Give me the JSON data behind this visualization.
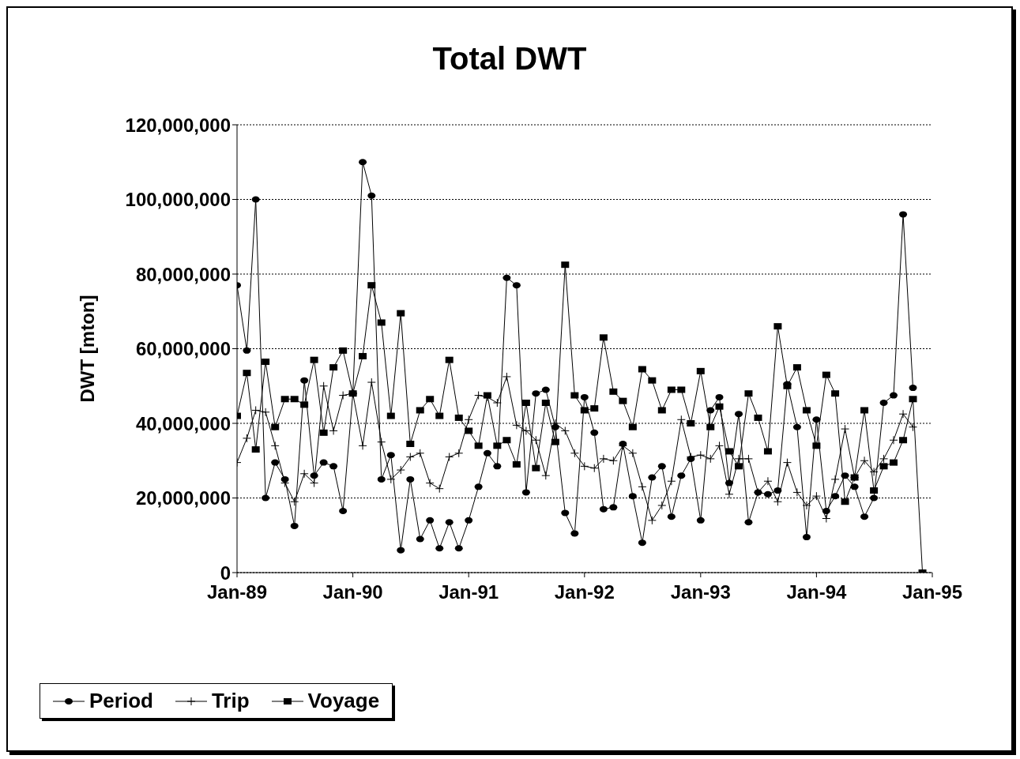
{
  "chart_data": {
    "type": "line",
    "title": "Total DWT",
    "ylabel": "DWT  [mton]",
    "x": [
      "1989-01",
      "1989-02",
      "1989-03",
      "1989-04",
      "1989-05",
      "1989-06",
      "1989-07",
      "1989-08",
      "1989-09",
      "1989-10",
      "1989-11",
      "1989-12",
      "1990-01",
      "1990-02",
      "1990-03",
      "1990-04",
      "1990-05",
      "1990-06",
      "1990-07",
      "1990-08",
      "1990-09",
      "1990-10",
      "1990-11",
      "1990-12",
      "1991-01",
      "1991-02",
      "1991-03",
      "1991-04",
      "1991-05",
      "1991-06",
      "1991-07",
      "1991-08",
      "1991-09",
      "1991-10",
      "1991-11",
      "1991-12",
      "1992-01",
      "1992-02",
      "1992-03",
      "1992-04",
      "1992-05",
      "1992-06",
      "1992-07",
      "1992-08",
      "1992-09",
      "1992-10",
      "1992-11",
      "1992-12",
      "1993-01",
      "1993-02",
      "1993-03",
      "1993-04",
      "1993-05",
      "1993-06",
      "1993-07",
      "1993-08",
      "1993-09",
      "1993-10",
      "1993-11",
      "1993-12",
      "1994-01",
      "1994-02",
      "1994-03",
      "1994-04",
      "1994-05",
      "1994-06",
      "1994-07",
      "1994-08",
      "1994-09",
      "1994-10",
      "1994-11",
      "1994-12"
    ],
    "series": [
      {
        "name": "Period",
        "color": "#000000",
        "marker": "circle",
        "values": [
          77000000,
          59500000,
          100000000,
          20000000,
          29500000,
          25000000,
          12500000,
          51500000,
          26000000,
          29500000,
          28500000,
          16500000,
          48000000,
          110000000,
          101000000,
          25000000,
          31500000,
          6000000,
          25000000,
          9000000,
          14000000,
          6500000,
          13500000,
          6500000,
          14000000,
          23000000,
          32000000,
          28500000,
          79000000,
          77000000,
          21500000,
          48000000,
          49000000,
          39000000,
          16000000,
          10500000,
          47000000,
          37500000,
          17000000,
          17500000,
          34500000,
          20500000,
          8000000,
          25500000,
          28500000,
          15000000,
          26000000,
          30500000,
          14000000,
          43500000,
          47000000,
          24000000,
          42500000,
          13500000,
          21500000,
          21000000,
          22000000,
          50500000,
          39000000,
          9500000,
          41000000,
          16500000,
          20500000,
          26000000,
          23000000,
          15000000,
          20000000,
          45500000,
          47500000,
          96000000,
          49500000,
          null
        ]
      },
      {
        "name": "Trip",
        "color": "#000000",
        "marker": "cross",
        "values": [
          29500000,
          36000000,
          43500000,
          43000000,
          34000000,
          24000000,
          19000000,
          26500000,
          24000000,
          50000000,
          38000000,
          47500000,
          48000000,
          34000000,
          51000000,
          35000000,
          25000000,
          27500000,
          31000000,
          32000000,
          24000000,
          22500000,
          31000000,
          32000000,
          41000000,
          47500000,
          47000000,
          45500000,
          52500000,
          39500000,
          38000000,
          35500000,
          26000000,
          40000000,
          38000000,
          32000000,
          28500000,
          28000000,
          30500000,
          30000000,
          34000000,
          32000000,
          23000000,
          14000000,
          18000000,
          24500000,
          41000000,
          31000000,
          31500000,
          30500000,
          34000000,
          21000000,
          30500000,
          30500000,
          21500000,
          24500000,
          19000000,
          29500000,
          21500000,
          18000000,
          20500000,
          14500000,
          25000000,
          38500000,
          25500000,
          30000000,
          27000000,
          30500000,
          35500000,
          42500000,
          39000000,
          null
        ]
      },
      {
        "name": "Voyage",
        "color": "#000000",
        "marker": "square",
        "values": [
          42000000,
          53500000,
          33000000,
          56500000,
          39000000,
          46500000,
          46500000,
          45000000,
          57000000,
          37500000,
          55000000,
          59500000,
          48000000,
          58000000,
          77000000,
          67000000,
          42000000,
          69500000,
          34500000,
          43500000,
          46500000,
          42000000,
          57000000,
          41500000,
          38000000,
          34000000,
          47500000,
          34000000,
          35500000,
          29000000,
          45500000,
          28000000,
          45500000,
          35000000,
          82500000,
          47500000,
          43500000,
          44000000,
          63000000,
          48500000,
          46000000,
          39000000,
          54500000,
          51500000,
          43500000,
          49000000,
          49000000,
          40000000,
          54000000,
          39000000,
          44500000,
          32500000,
          28500000,
          48000000,
          41500000,
          32500000,
          66000000,
          50000000,
          55000000,
          43500000,
          34000000,
          53000000,
          48000000,
          19000000,
          25500000,
          43500000,
          22000000,
          28500000,
          29500000,
          35500000,
          46500000,
          0
        ]
      }
    ],
    "xlim": [
      "1989-01",
      "1995-01"
    ],
    "xticks": [
      {
        "value": "1989-01",
        "label": "Jan-89"
      },
      {
        "value": "1990-01",
        "label": "Jan-90"
      },
      {
        "value": "1991-01",
        "label": "Jan-91"
      },
      {
        "value": "1992-01",
        "label": "Jan-92"
      },
      {
        "value": "1993-01",
        "label": "Jan-93"
      },
      {
        "value": "1994-01",
        "label": "Jan-94"
      },
      {
        "value": "1995-01",
        "label": "Jan-95"
      }
    ],
    "ylim": [
      0,
      120000000
    ],
    "yticks": [
      {
        "value": 0,
        "label": "0"
      },
      {
        "value": 20000000,
        "label": "20,000,000"
      },
      {
        "value": 40000000,
        "label": "40,000,000"
      },
      {
        "value": 60000000,
        "label": "60,000,000"
      },
      {
        "value": 80000000,
        "label": "80,000,000"
      },
      {
        "value": 100000000,
        "label": "100,000,000"
      },
      {
        "value": 120000000,
        "label": "120,000,000"
      }
    ],
    "grid": "y",
    "legend": "bottom"
  }
}
